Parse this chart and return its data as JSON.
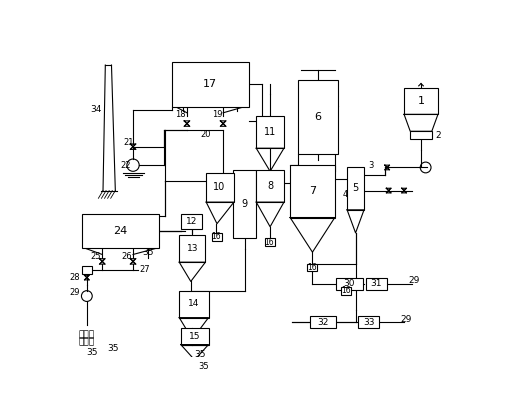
{
  "bg_color": "#ffffff",
  "line_color": "#000000",
  "fig_width": 5.12,
  "fig_height": 4.01,
  "dpi": 100
}
